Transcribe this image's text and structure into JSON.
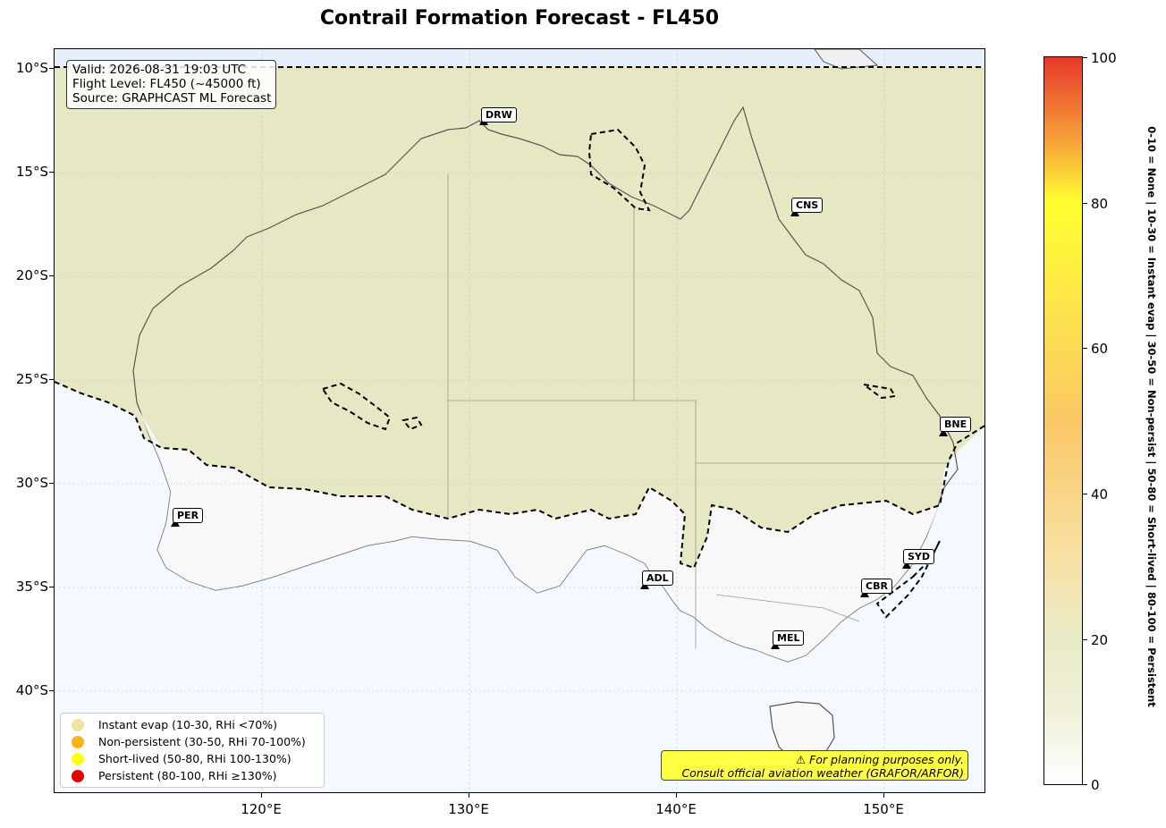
{
  "title": "Contrail Formation Forecast - FL450",
  "info": {
    "line1": "Valid: 2026-08-31 19:03 UTC",
    "line2": "Flight Level: FL450 (~45000 ft)",
    "line3": "Source: GRAPHCAST ML Forecast"
  },
  "axes": {
    "lat_ticks": [
      "10°S",
      "15°S",
      "20°S",
      "25°S",
      "30°S",
      "35°S",
      "40°S"
    ],
    "lon_ticks": [
      "120°E",
      "130°E",
      "140°E",
      "150°E"
    ]
  },
  "cities": [
    {
      "code": "DRW",
      "lon": 130.8,
      "lat": -12.5
    },
    {
      "code": "CNS",
      "lon": 145.8,
      "lat": -16.9
    },
    {
      "code": "BNE",
      "lon": 153.0,
      "lat": -27.5
    },
    {
      "code": "PER",
      "lon": 115.9,
      "lat": -31.9
    },
    {
      "code": "SYD",
      "lon": 151.2,
      "lat": -33.9
    },
    {
      "code": "ADL",
      "lon": 138.6,
      "lat": -34.9
    },
    {
      "code": "CBR",
      "lon": 149.1,
      "lat": -35.3
    },
    {
      "code": "MEL",
      "lon": 144.9,
      "lat": -37.8
    }
  ],
  "legend": {
    "items": [
      {
        "label": "Instant evap (10-30, RHi <70%)",
        "color": "#f0e2a0"
      },
      {
        "label": "Non-persistent (30-50, RHi 70-100%)",
        "color": "#fbb21a"
      },
      {
        "label": "Short-lived (50-80, RHi 100-130%)",
        "color": "#ffff10"
      },
      {
        "label": "Persistent (80-100, RHi ≥130%)",
        "color": "#e80000"
      }
    ]
  },
  "disclaimer": {
    "line1": "⚠ For planning purposes only.",
    "line2": "Consult official aviation weather (GRAFOR/ARFOR)"
  },
  "colorbar": {
    "ticks": [
      "0",
      "20",
      "40",
      "60",
      "80",
      "100"
    ],
    "label": "0-10 = None  |  10-30 = Instant evap  |  30-50 = Non-persist  |  50-80 = Short-lived  |  80-100 = Persistent"
  },
  "colors": {
    "land": "#e8e9c6",
    "ocean": "#f4f9ff",
    "contour": "#000000"
  }
}
